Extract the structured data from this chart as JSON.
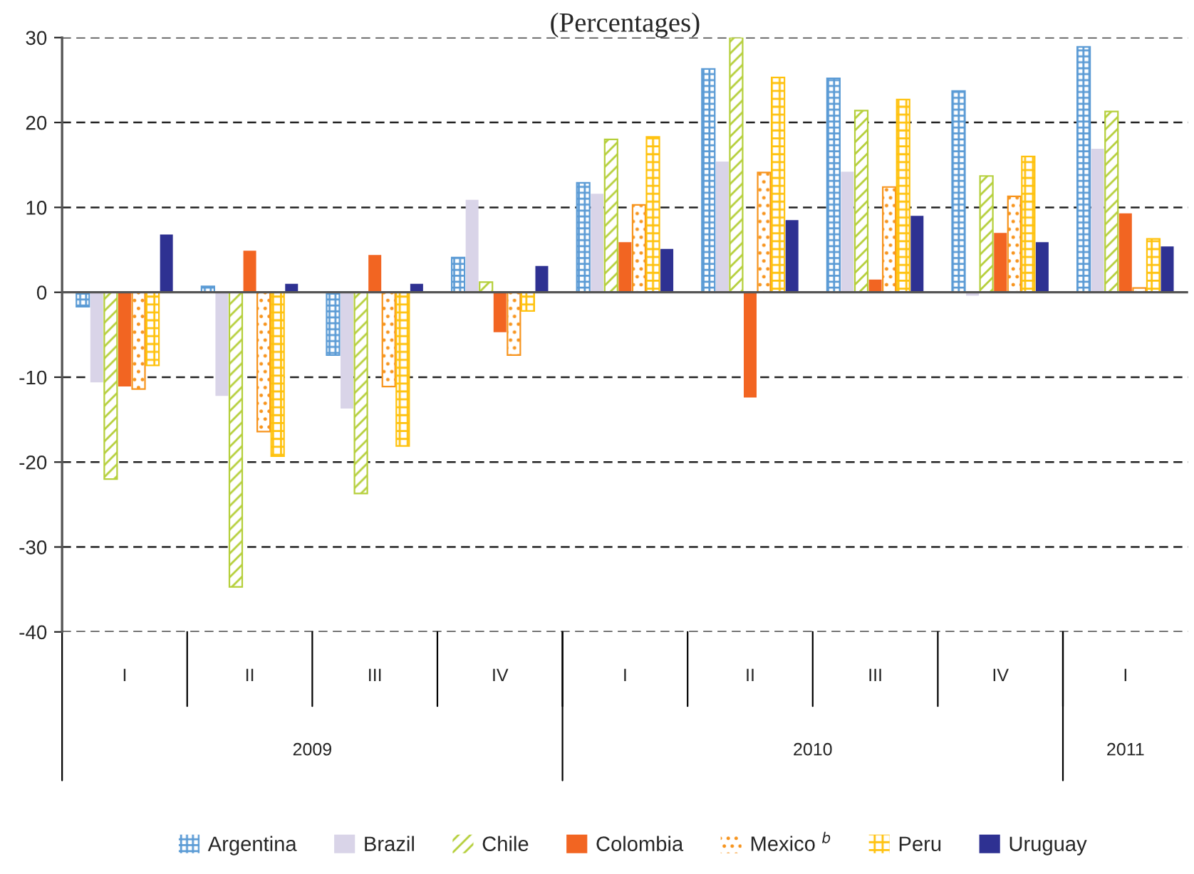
{
  "chart_data": {
    "type": "bar",
    "title": "(Percentages)",
    "categories": [
      "I",
      "II",
      "III",
      "IV",
      "I",
      "II",
      "III",
      "IV",
      "I"
    ],
    "annotations": [
      "2009",
      "2010",
      "2011"
    ],
    "series": [
      {
        "name": "Argentina",
        "color": "#5b9bd5",
        "values": [
          -1.7,
          0.7,
          -7.4,
          4.1,
          12.9,
          26.3,
          25.2,
          23.7,
          28.9
        ]
      },
      {
        "name": "Brazil",
        "color": "#d9d4e8",
        "values": [
          -10.6,
          -12.2,
          -13.7,
          10.9,
          11.6,
          15.4,
          14.2,
          -0.4,
          16.9
        ]
      },
      {
        "name": "Chile",
        "color": "#b5cf3a",
        "values": [
          -22.0,
          -34.7,
          -23.7,
          1.2,
          18.0,
          30.0,
          21.4,
          13.7,
          21.3
        ]
      },
      {
        "name": "Colombia",
        "color": "#f26522",
        "values": [
          -11.1,
          4.9,
          4.4,
          -4.7,
          5.9,
          -12.4,
          1.5,
          7.0,
          9.3
        ]
      },
      {
        "name": "Mexico $^{b}$",
        "color": "#f7941d",
        "values": [
          -11.4,
          -16.4,
          -11.1,
          -7.4,
          10.3,
          14.1,
          12.4,
          11.3,
          0.5
        ]
      },
      {
        "name": "Peru",
        "color": "#ffc20e",
        "values": [
          -8.6,
          -19.3,
          -18.1,
          -2.2,
          18.3,
          25.3,
          22.7,
          16.0,
          6.3
        ]
      },
      {
        "name": "Uruguay",
        "color": "#2e3192",
        "values": [
          6.8,
          1.0,
          1.0,
          3.1,
          5.1,
          8.5,
          9.0,
          5.9,
          5.4
        ]
      }
    ],
    "ylim": [
      -40,
      30
    ],
    "yticks": [
      -40,
      -30,
      -20,
      -10,
      0,
      10,
      20,
      30
    ],
    "grid": "y",
    "legend": "bottom"
  }
}
